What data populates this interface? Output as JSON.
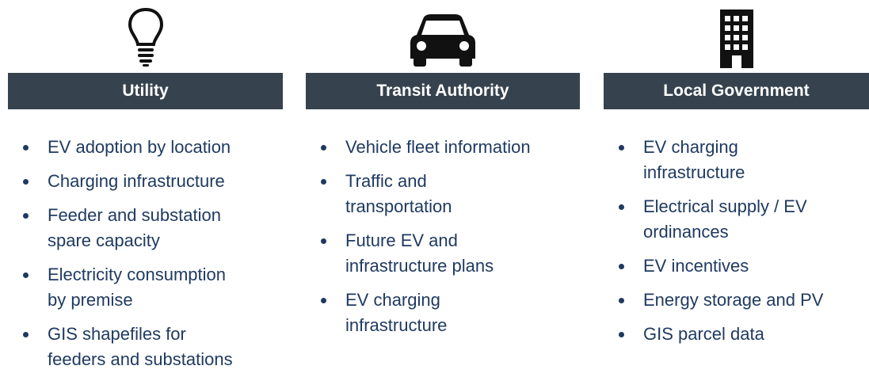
{
  "columns": [
    {
      "header": "Utility",
      "items": [
        [
          "EV adoption by location"
        ],
        [
          "Charging infrastructure"
        ],
        [
          "Feeder and substation",
          "spare capacity"
        ],
        [
          "Electricity consumption",
          "by premise"
        ],
        [
          "GIS shapefiles for",
          "feeders and substations"
        ]
      ]
    },
    {
      "header": "Transit Authority",
      "items": [
        [
          "Vehicle fleet information"
        ],
        [
          "Traffic and",
          "transportation"
        ],
        [
          "Future EV and",
          "infrastructure plans"
        ],
        [
          "EV charging",
          "infrastructure"
        ]
      ]
    },
    {
      "header": "Local Government",
      "items": [
        [
          "EV charging",
          "infrastructure"
        ],
        [
          "Electrical supply / EV",
          "ordinances"
        ],
        [
          "EV incentives"
        ],
        [
          "Energy storage and PV"
        ],
        [
          "GIS parcel data"
        ]
      ]
    }
  ]
}
